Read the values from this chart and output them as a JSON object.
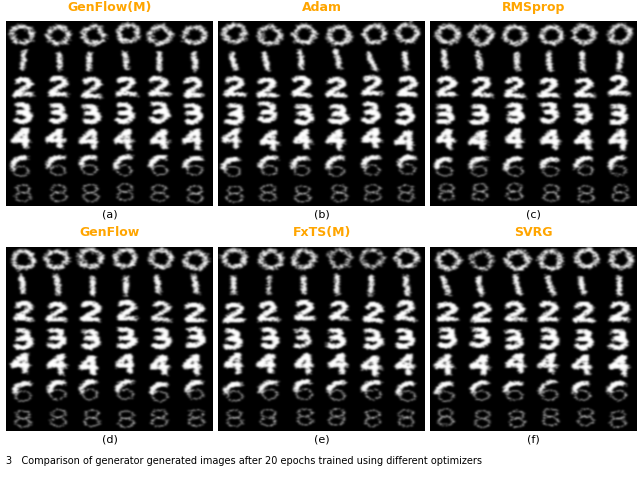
{
  "titles_top": [
    "GenFlow(M)",
    "Adam",
    "RMSprop"
  ],
  "titles_bottom": [
    "GenFlow",
    "FxTS(M)",
    "SVRG"
  ],
  "title_color": "#FFA500",
  "labels_top": [
    "(a)",
    "(b)",
    "(c)"
  ],
  "labels_bottom": [
    "(d)",
    "(e)",
    "(f)"
  ],
  "caption": "3   Comparison of generator generated images after 20 epochs trained using different optimizers",
  "fig_bg": "#ffffff",
  "label_fontsize": 8,
  "title_fontsize": 9,
  "caption_fontsize": 7,
  "row_digits": [
    0,
    1,
    2,
    3,
    4,
    6,
    8
  ],
  "ncols": 6,
  "nrows": 7
}
